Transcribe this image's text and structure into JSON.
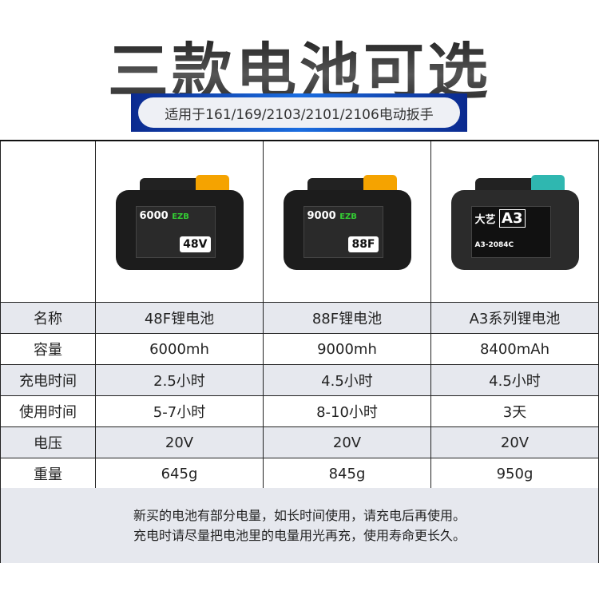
{
  "title": "三款电池可选",
  "subtitle": "适用于161/169/2103/2101/2106电动扳手",
  "products": [
    {
      "model_text": "6000",
      "badge": "48V",
      "brand": "EZB",
      "latch_color": "#f5a300"
    },
    {
      "model_text": "9000",
      "badge": "88F",
      "brand": "EZB",
      "latch_color": "#f5a300"
    },
    {
      "model_text": "大艺",
      "badge": "A3",
      "brand": "A3-2084C",
      "latch_color": "#2fb7b0"
    }
  ],
  "rows": [
    {
      "label": "名称",
      "values": [
        "48F锂电池",
        "88F锂电池",
        "A3系列锂电池"
      ]
    },
    {
      "label": "容量",
      "values": [
        "6000mh",
        "9000mh",
        "8400mAh"
      ]
    },
    {
      "label": "充电时间",
      "values": [
        "2.5小时",
        "4.5小时",
        "4.5小时"
      ]
    },
    {
      "label": "使用时间",
      "values": [
        "5-7小时",
        "8-10小时",
        "3天"
      ]
    },
    {
      "label": "电压",
      "values": [
        "20V",
        "20V",
        "20V"
      ]
    },
    {
      "label": "重量",
      "values": [
        "645g",
        "845g",
        "950g"
      ]
    }
  ],
  "note": [
    "新买的电池有部分电量，如长时间使用，请充电后再使用。",
    "充电时请尽量把电池里的电量用光再充，使用寿命更长久。"
  ]
}
